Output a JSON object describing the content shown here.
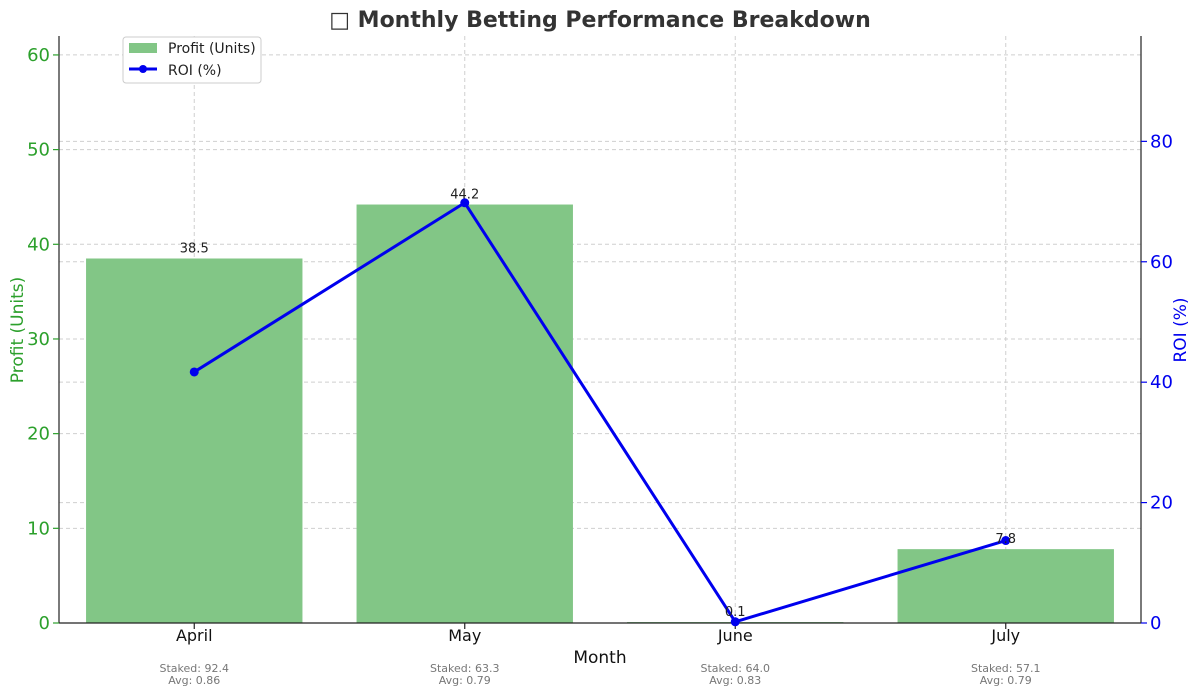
{
  "chart_data": {
    "type": "bar",
    "title": "□ Monthly Betting Performance Breakdown",
    "xlabel": "Month",
    "ylabel_left": "Profit (Units)",
    "ylabel_right": "ROI (%)",
    "categories": [
      "April",
      "May",
      "June",
      "July"
    ],
    "series": [
      {
        "name": "Profit (Units)",
        "type": "bar",
        "axis": "left",
        "color": "#82c686",
        "values": [
          38.5,
          44.2,
          0.1,
          7.8
        ],
        "labels": [
          "38.5",
          "44.2",
          "0.1",
          "7.8"
        ]
      },
      {
        "name": "ROI (%)",
        "type": "line",
        "axis": "right",
        "color": "#0000ee",
        "values": [
          41.7,
          69.8,
          0.2,
          13.7
        ]
      }
    ],
    "annotations": [
      {
        "staked": "Staked: 92.4",
        "avg": "Avg: 0.86"
      },
      {
        "staked": "Staked: 63.3",
        "avg": "Avg: 0.79"
      },
      {
        "staked": "Staked: 64.0",
        "avg": "Avg: 0.83"
      },
      {
        "staked": "Staked: 57.1",
        "avg": "Avg: 0.79"
      }
    ],
    "ylim_left": [
      0,
      62
    ],
    "yticks_left": [
      0,
      10,
      20,
      30,
      40,
      50,
      60
    ],
    "ylim_right": [
      0,
      97.5
    ],
    "yticks_right": [
      0,
      20,
      40,
      60,
      80
    ],
    "grid": true,
    "legend_position": "top-left",
    "left_axis_color": "#2ca02c",
    "right_axis_color": "#0000ee"
  }
}
